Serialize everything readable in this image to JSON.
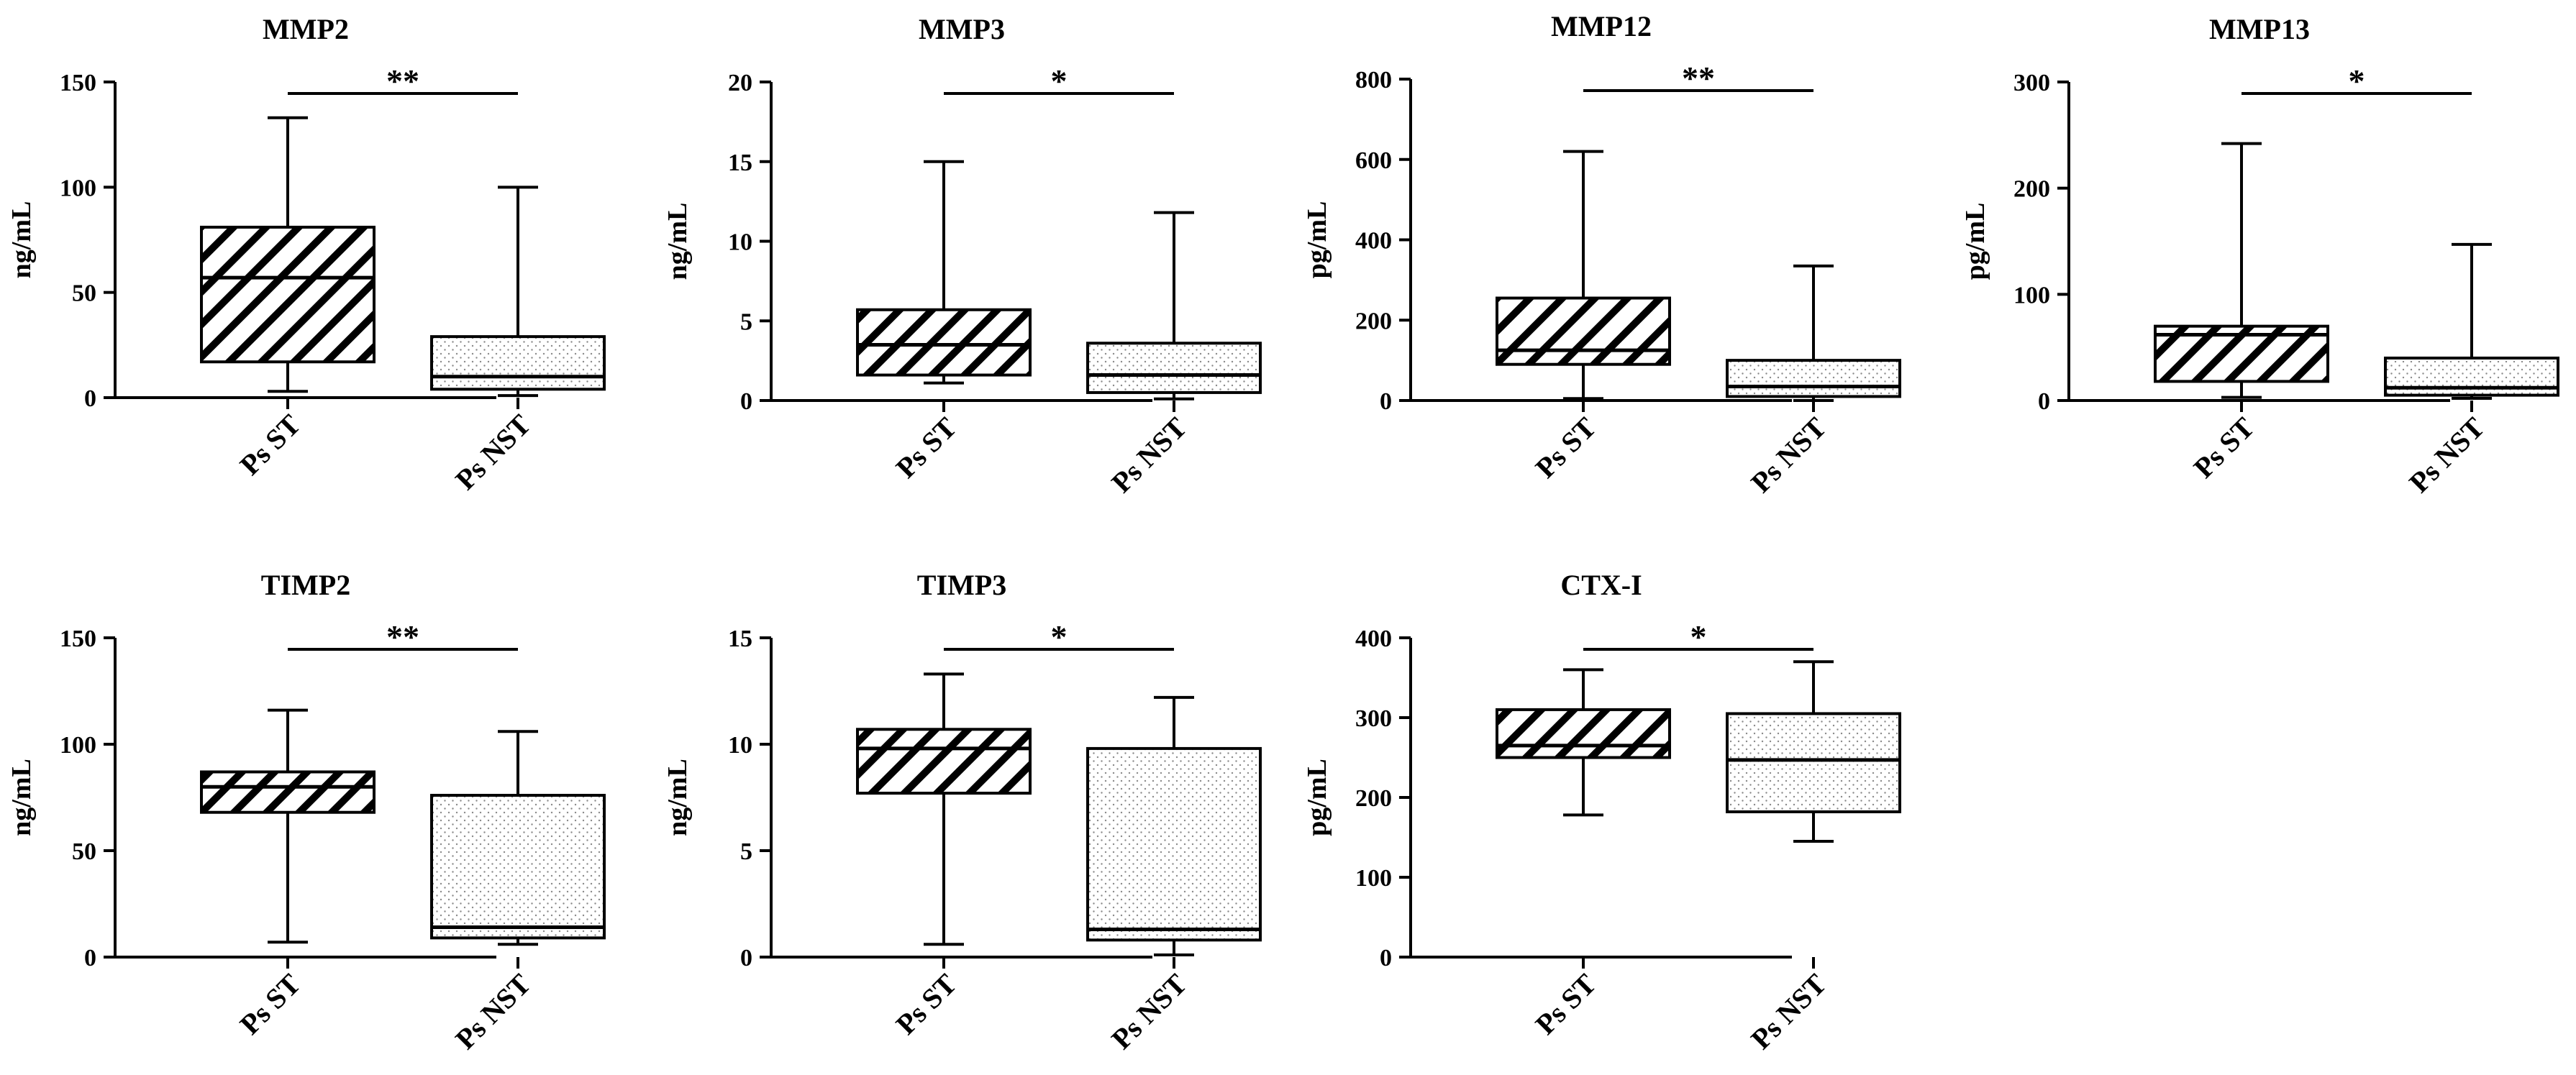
{
  "chart_data": [
    {
      "type": "boxplot",
      "title": "MMP2",
      "ylabel": "ng/mL",
      "ylim": [
        0,
        150
      ],
      "yticks": [
        0,
        50,
        100,
        150
      ],
      "categories": [
        "Ps ST",
        "Ps NST"
      ],
      "boxes": [
        {
          "name": "Ps ST",
          "pattern": "hatch",
          "min": 3,
          "q1": 17,
          "median": 57,
          "q3": 81,
          "max": 133
        },
        {
          "name": "Ps NST",
          "pattern": "dots",
          "min": 1,
          "q1": 4,
          "median": 10,
          "q3": 29,
          "max": 100
        }
      ],
      "significance": "**"
    },
    {
      "type": "boxplot",
      "title": "MMP3",
      "ylabel": "ng/mL",
      "ylim": [
        0,
        20
      ],
      "yticks": [
        0,
        5,
        10,
        15,
        20
      ],
      "categories": [
        "Ps ST",
        "Ps NST"
      ],
      "boxes": [
        {
          "name": "Ps ST",
          "pattern": "hatch",
          "min": 1.1,
          "q1": 1.6,
          "median": 3.5,
          "q3": 5.7,
          "max": 15
        },
        {
          "name": "Ps NST",
          "pattern": "dots",
          "min": 0.1,
          "q1": 0.5,
          "median": 1.6,
          "q3": 3.6,
          "max": 11.8
        }
      ],
      "significance": "*"
    },
    {
      "type": "boxplot",
      "title": "MMP12",
      "ylabel": "pg/mL",
      "ylim": [
        0,
        800
      ],
      "yticks": [
        0,
        200,
        400,
        600,
        800
      ],
      "categories": [
        "Ps ST",
        "Ps NST"
      ],
      "boxes": [
        {
          "name": "Ps ST",
          "pattern": "hatch",
          "min": 5,
          "q1": 90,
          "median": 125,
          "q3": 255,
          "max": 620
        },
        {
          "name": "Ps NST",
          "pattern": "dots",
          "min": 0,
          "q1": 10,
          "median": 35,
          "q3": 100,
          "max": 335
        }
      ],
      "significance": "**"
    },
    {
      "type": "boxplot",
      "title": "MMP13",
      "ylabel": "pg/mL",
      "ylim": [
        0,
        300
      ],
      "yticks": [
        0,
        100,
        200,
        300
      ],
      "categories": [
        "Ps ST",
        "Ps NST"
      ],
      "boxes": [
        {
          "name": "Ps ST",
          "pattern": "hatch",
          "min": 3,
          "q1": 18,
          "median": 62,
          "q3": 70,
          "max": 242
        },
        {
          "name": "Ps NST",
          "pattern": "dots",
          "min": 2,
          "q1": 5,
          "median": 12,
          "q3": 40,
          "max": 147
        }
      ],
      "significance": "*"
    },
    {
      "type": "boxplot",
      "title": "TIMP2",
      "ylabel": "ng/mL",
      "ylim": [
        0,
        150
      ],
      "yticks": [
        0,
        50,
        100,
        150
      ],
      "categories": [
        "Ps ST",
        "Ps NST"
      ],
      "boxes": [
        {
          "name": "Ps ST",
          "pattern": "hatch",
          "min": 7,
          "q1": 68,
          "median": 80,
          "q3": 87,
          "max": 116
        },
        {
          "name": "Ps NST",
          "pattern": "dots",
          "min": 6,
          "q1": 9,
          "median": 14,
          "q3": 76,
          "max": 106
        }
      ],
      "significance": "**"
    },
    {
      "type": "boxplot",
      "title": "TIMP3",
      "ylabel": "ng/mL",
      "ylim": [
        0,
        15
      ],
      "yticks": [
        0,
        5,
        10,
        15
      ],
      "categories": [
        "Ps ST",
        "Ps NST"
      ],
      "boxes": [
        {
          "name": "Ps ST",
          "pattern": "hatch",
          "min": 0.6,
          "q1": 7.7,
          "median": 9.8,
          "q3": 10.7,
          "max": 13.3
        },
        {
          "name": "Ps NST",
          "pattern": "dots",
          "min": 0.1,
          "q1": 0.8,
          "median": 1.3,
          "q3": 9.8,
          "max": 12.2
        }
      ],
      "significance": "*"
    },
    {
      "type": "boxplot",
      "title": "CTX-I",
      "ylabel": "pg/mL",
      "ylim": [
        0,
        400
      ],
      "yticks": [
        0,
        100,
        200,
        300,
        400
      ],
      "categories": [
        "Ps ST",
        "Ps NST"
      ],
      "boxes": [
        {
          "name": "Ps ST",
          "pattern": "hatch",
          "min": 178,
          "q1": 250,
          "median": 265,
          "q3": 310,
          "max": 360
        },
        {
          "name": "Ps NST",
          "pattern": "dots",
          "min": 145,
          "q1": 182,
          "median": 247,
          "q3": 305,
          "max": 370
        }
      ],
      "significance": "*"
    }
  ]
}
